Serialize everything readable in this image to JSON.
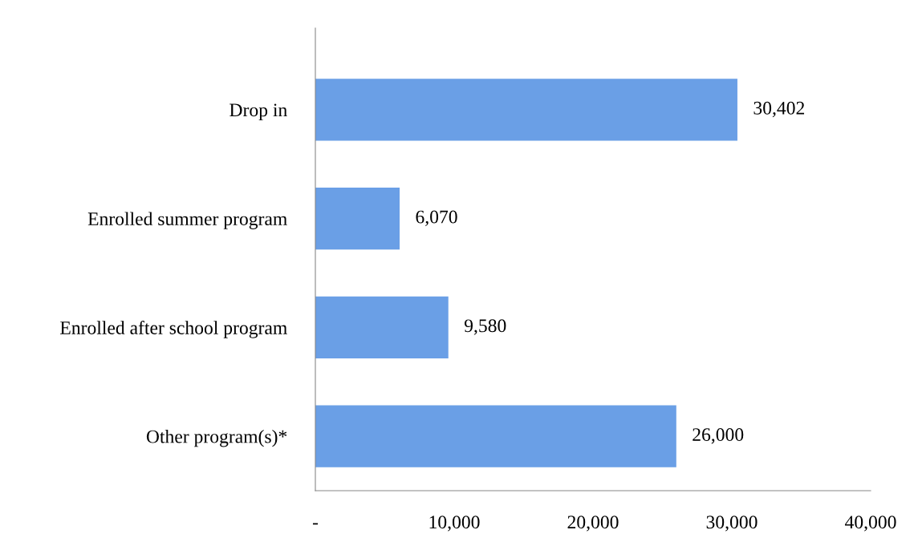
{
  "chart_data": {
    "type": "bar",
    "orientation": "horizontal",
    "categories": [
      "Drop in",
      "Enrolled summer program",
      "Enrolled after school program",
      "Other program(s)*"
    ],
    "values": [
      30402,
      6070,
      9580,
      26000
    ],
    "value_labels": [
      "30,402",
      "6,070",
      "9,580",
      "26,000"
    ],
    "color": "#6a9fe6",
    "xlim": [
      0,
      40000
    ],
    "xticks": [
      {
        "value": 0,
        "label": "-"
      },
      {
        "value": 10000,
        "label": "10,000"
      },
      {
        "value": 20000,
        "label": "20,000"
      },
      {
        "value": 30000,
        "label": "30,000"
      },
      {
        "value": 40000,
        "label": "40,000"
      }
    ],
    "grid": false,
    "legend": false
  }
}
